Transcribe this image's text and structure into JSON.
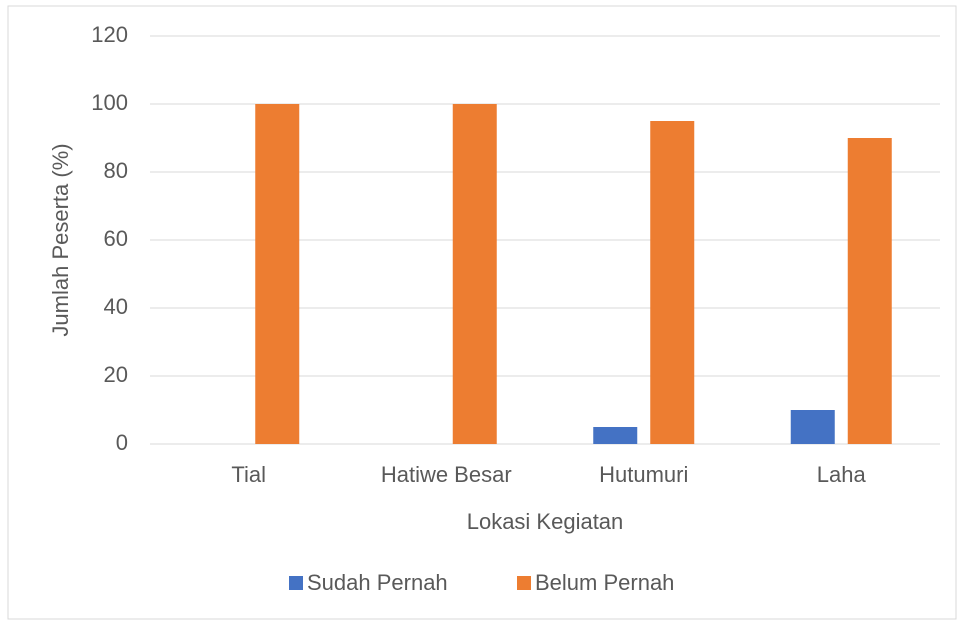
{
  "chart_data": {
    "type": "bar",
    "x_label": "Lokasi Kegiatan",
    "y_label": "Jumlah Peserta (%)",
    "categories": [
      "Tial",
      "Hatiwe Besar",
      "Hutumuri",
      "Laha"
    ],
    "series": [
      {
        "name": "Sudah Pernah",
        "color": "#4472c4",
        "values": [
          0,
          0,
          5,
          10
        ]
      },
      {
        "name": "Belum Pernah",
        "color": "#ed7d31",
        "values": [
          100,
          100,
          95,
          90
        ]
      }
    ],
    "ylim": [
      0,
      120
    ],
    "yticks": [
      0,
      20,
      40,
      60,
      80,
      100,
      120
    ],
    "grid": true,
    "legend": "bottom"
  }
}
